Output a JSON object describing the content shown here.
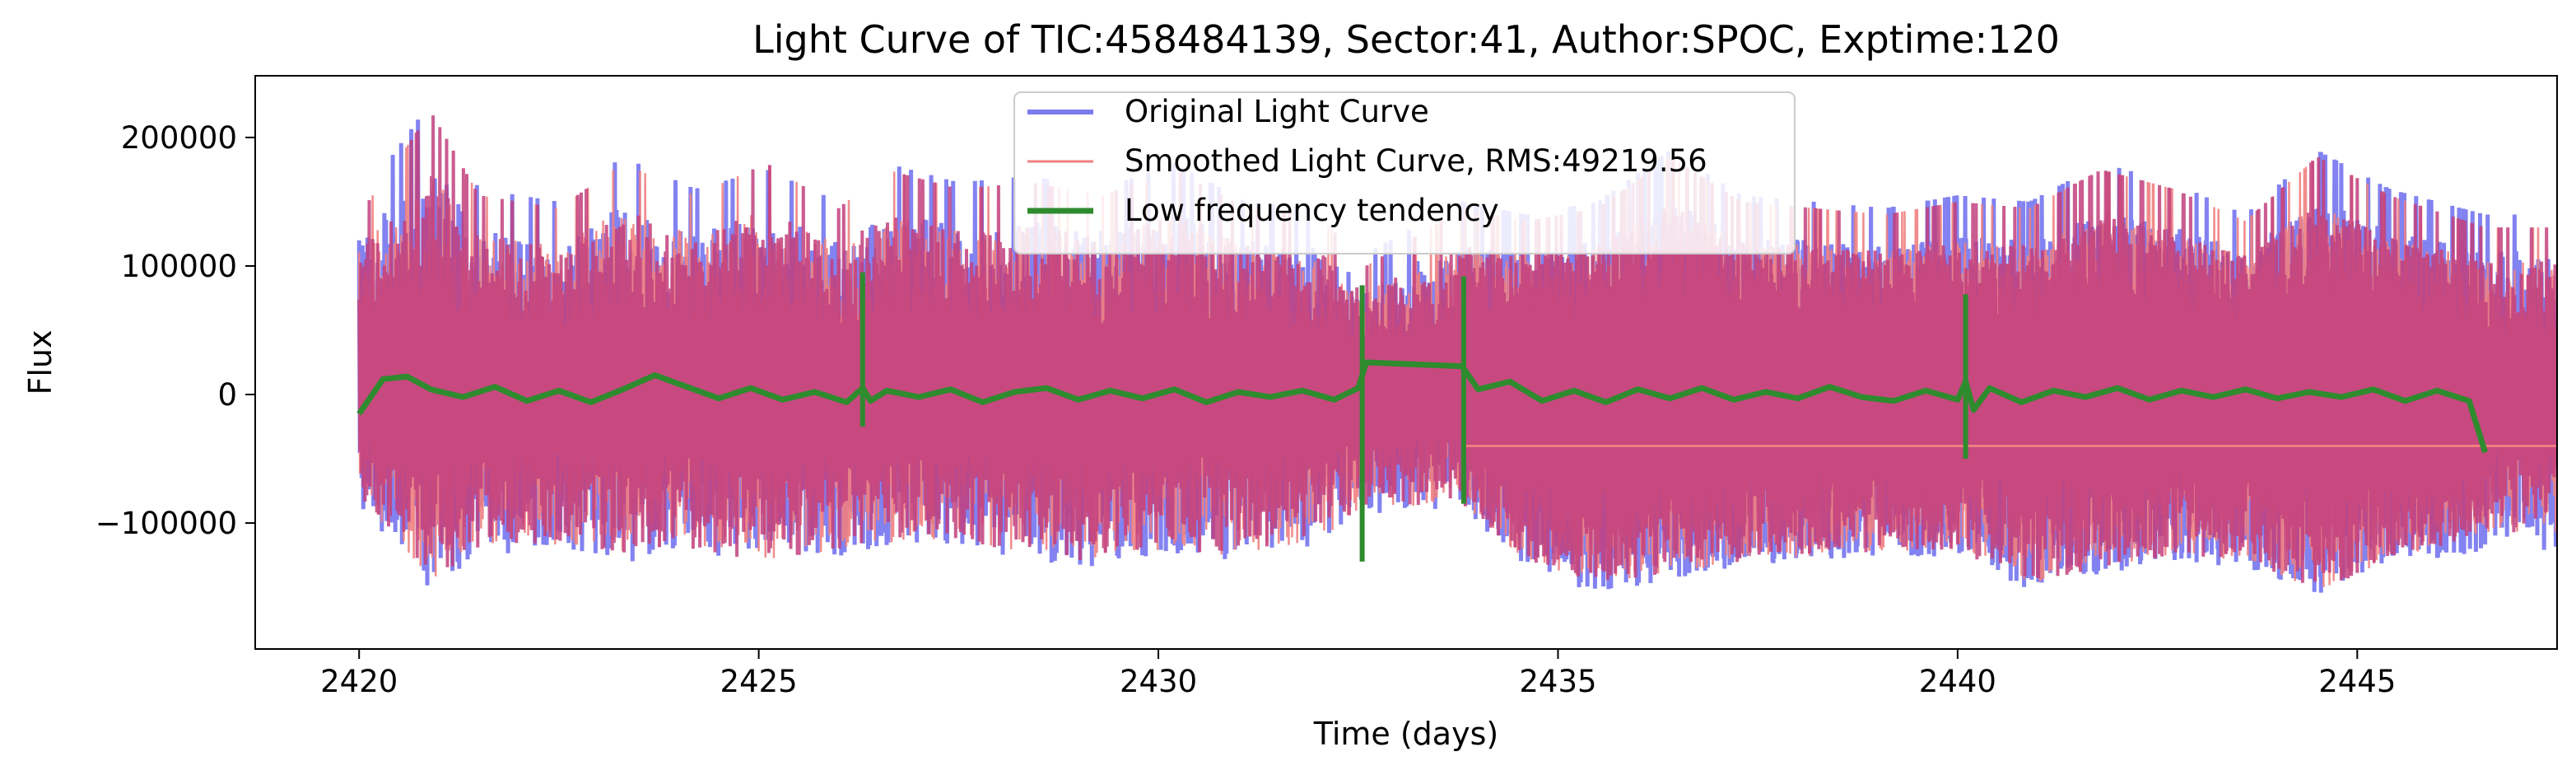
{
  "chart_data": {
    "type": "line",
    "title": "Light Curve of TIC:458484139, Sector:41, Author:SPOC, Exptime:120",
    "xlabel": "Time (days)",
    "ylabel": "Flux",
    "xlim": [
      2418.7,
      2447.5
    ],
    "ylim": [
      -198000,
      248000
    ],
    "xticks": [
      2420,
      2425,
      2430,
      2435,
      2440,
      2445
    ],
    "xtick_labels": [
      "2420",
      "2425",
      "2430",
      "2435",
      "2440",
      "2445"
    ],
    "yticks": [
      -100000,
      0,
      100000,
      200000
    ],
    "ytick_labels": [
      "−100000",
      "0",
      "100000",
      "200000"
    ],
    "grid": false,
    "legend_position": "top-center",
    "data_gap": [
      32.6,
      33.8
    ],
    "series": [
      {
        "name": "Original Light Curve",
        "color": "#7b7bf0",
        "envelope": {
          "x": [
            2420.0,
            2420.9,
            2421.5,
            2422.5,
            2423.3,
            2424.2,
            2425.1,
            2426.0,
            2426.6,
            2427.5,
            2428.4,
            2429.3,
            2430.2,
            2431.1,
            2432.0,
            2432.6,
            2433.8,
            2434.6,
            2435.5,
            2436.4,
            2437.3,
            2438.2,
            2439.1,
            2440.0,
            2440.9,
            2441.8,
            2442.7,
            2443.6,
            2444.5,
            2445.4,
            2446.6
          ],
          "upper": [
            150000,
            228000,
            160000,
            150000,
            185000,
            160000,
            175000,
            150000,
            180000,
            165000,
            170000,
            160000,
            180000,
            150000,
            145000,
            110000,
            150000,
            140000,
            150000,
            190000,
            155000,
            150000,
            145000,
            155000,
            150000,
            180000,
            165000,
            140000,
            190000,
            160000,
            140000
          ],
          "lower": [
            -95000,
            -170000,
            -140000,
            -135000,
            -145000,
            -140000,
            -150000,
            -140000,
            -135000,
            -130000,
            -145000,
            -150000,
            -140000,
            -145000,
            -130000,
            -105000,
            -100000,
            -150000,
            -175000,
            -160000,
            -150000,
            -145000,
            -140000,
            -140000,
            -170000,
            -155000,
            -145000,
            -150000,
            -175000,
            -150000,
            -135000
          ]
        }
      },
      {
        "name": "Smoothed Light Curve, RMS:49219.56",
        "color": "#f08080",
        "envelope": {
          "x": [
            2420.0,
            2420.9,
            2421.5,
            2422.5,
            2423.3,
            2424.2,
            2425.1,
            2426.0,
            2426.6,
            2427.5,
            2428.4,
            2429.3,
            2430.2,
            2431.1,
            2432.0,
            2432.6,
            2433.8,
            2434.6,
            2435.5,
            2436.4,
            2437.3,
            2438.2,
            2439.1,
            2440.0,
            2440.9,
            2441.8,
            2442.7,
            2443.6,
            2444.5,
            2445.4,
            2446.6
          ],
          "upper": [
            140000,
            220000,
            155000,
            145000,
            180000,
            155000,
            180000,
            145000,
            175000,
            160000,
            165000,
            155000,
            175000,
            145000,
            140000,
            100000,
            145000,
            135000,
            145000,
            185000,
            150000,
            145000,
            140000,
            150000,
            145000,
            175000,
            160000,
            135000,
            185000,
            155000,
            130000
          ],
          "lower": [
            -90000,
            -160000,
            -135000,
            -130000,
            -140000,
            -135000,
            -145000,
            -135000,
            -130000,
            -125000,
            -140000,
            -145000,
            -135000,
            -140000,
            -125000,
            -100000,
            -95000,
            -145000,
            -165000,
            -155000,
            -145000,
            -140000,
            -135000,
            -135000,
            -165000,
            -150000,
            -140000,
            -145000,
            -170000,
            -145000,
            -120000
          ]
        }
      },
      {
        "name": "Low frequency tendency",
        "color": "#2e8b2e",
        "x": [
          2420.0,
          2420.3,
          2420.6,
          2420.9,
          2421.3,
          2421.7,
          2422.1,
          2422.5,
          2422.9,
          2423.3,
          2423.7,
          2424.1,
          2424.5,
          2424.9,
          2425.3,
          2425.7,
          2426.1,
          2426.3,
          2426.4,
          2426.6,
          2427.0,
          2427.4,
          2427.8,
          2428.2,
          2428.6,
          2429.0,
          2429.4,
          2429.8,
          2430.2,
          2430.6,
          2431.0,
          2431.4,
          2431.8,
          2432.2,
          2432.5,
          2432.6,
          2433.8,
          2434.0,
          2434.4,
          2434.8,
          2435.2,
          2435.6,
          2436.0,
          2436.4,
          2436.8,
          2437.2,
          2437.6,
          2438.0,
          2438.4,
          2438.8,
          2439.2,
          2439.6,
          2440.0,
          2440.1,
          2440.2,
          2440.4,
          2440.8,
          2441.2,
          2441.6,
          2442.0,
          2442.4,
          2442.8,
          2443.2,
          2443.6,
          2444.0,
          2444.4,
          2444.8,
          2445.2,
          2445.6,
          2446.0,
          2446.4,
          2446.6
        ],
        "y": [
          -15000,
          12000,
          14000,
          4000,
          -2000,
          6000,
          -5000,
          3000,
          -6000,
          4000,
          15000,
          6000,
          -3000,
          5000,
          -4000,
          2000,
          -6000,
          5000,
          -5000,
          3000,
          -2000,
          4000,
          -6000,
          2000,
          5000,
          -4000,
          3000,
          -3000,
          4000,
          -6000,
          2000,
          -2000,
          3000,
          -4000,
          5000,
          25000,
          22000,
          4000,
          10000,
          -5000,
          3000,
          -6000,
          4000,
          -3000,
          5000,
          -4000,
          2000,
          -3000,
          6000,
          -2000,
          -5000,
          3000,
          -4000,
          10000,
          -12000,
          5000,
          -6000,
          3000,
          -2000,
          5000,
          -4000,
          3000,
          -2000,
          4000,
          -3000,
          2000,
          -2000,
          4000,
          -5000,
          3000,
          -5000,
          -45000
        ]
      }
    ]
  }
}
